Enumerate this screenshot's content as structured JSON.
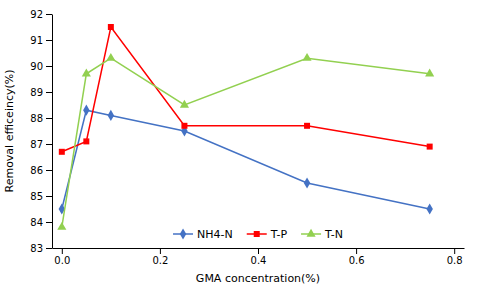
{
  "chart_data": {
    "type": "line",
    "x": [
      0,
      0.05,
      0.1,
      0.25,
      0.5,
      0.75
    ],
    "series": [
      {
        "name": "NH4-N",
        "color": "#4472c4",
        "marker": "diamond",
        "values": [
          84.5,
          88.3,
          88.1,
          87.5,
          85.5,
          84.5
        ]
      },
      {
        "name": "T-P",
        "color": "#ff0000",
        "marker": "square",
        "values": [
          86.7,
          87.1,
          91.5,
          87.7,
          87.7,
          86.9
        ]
      },
      {
        "name": "T-N",
        "color": "#92d050",
        "marker": "triangle",
        "values": [
          83.8,
          89.7,
          90.3,
          88.5,
          90.3,
          89.7
        ]
      }
    ],
    "xlabel": "GMA concentration(%)",
    "ylabel": "Removal efficeincy(%)",
    "xlim": [
      -0.02,
      0.82
    ],
    "ylim": [
      83,
      92
    ],
    "xticks": [
      {
        "value": 0,
        "label": "0.0"
      },
      0.2,
      0.4,
      0.6,
      0.8
    ],
    "yticks": [
      83,
      84,
      85,
      86,
      87,
      88,
      89,
      90,
      91,
      92
    ],
    "grid": false,
    "legend": "bottom"
  }
}
